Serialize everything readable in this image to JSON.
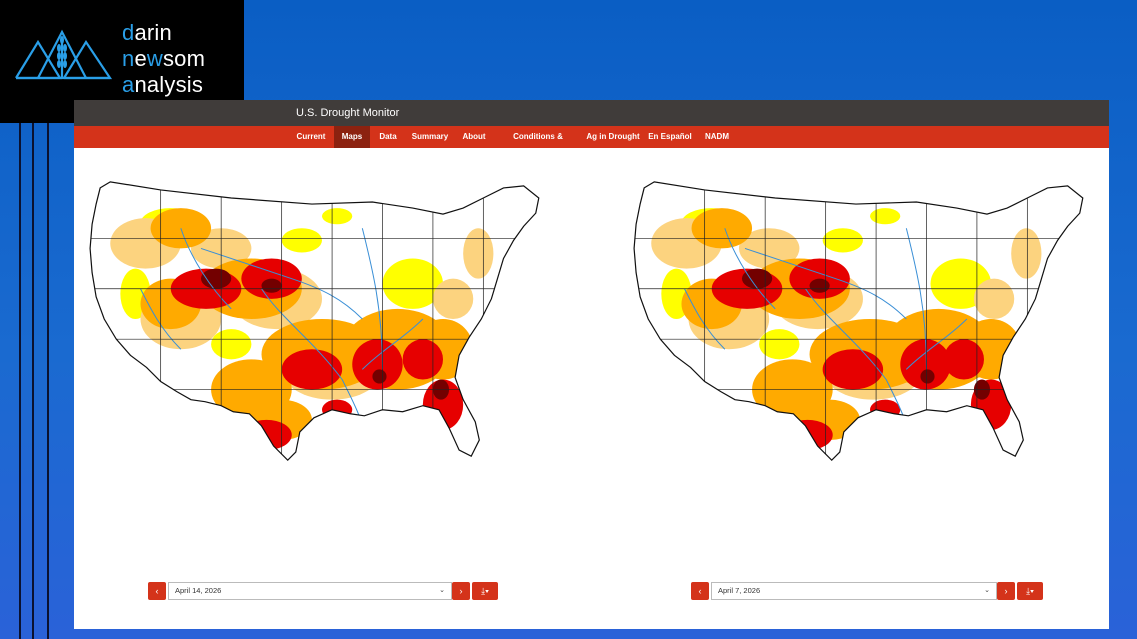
{
  "brand": {
    "lines": [
      {
        "first": "d",
        "rest": "arin",
        "mid": ""
      },
      {
        "first": "n",
        "rest": "som",
        "mid": "ew"
      },
      {
        "first": "a",
        "rest": "nalysis",
        "mid": ""
      }
    ],
    "logo_icon": "wheat-mountains-icon",
    "colors": {
      "accent": "#2a9fe8",
      "bg": "#000000"
    }
  },
  "usdm": {
    "title": "U.S. Drought Monitor",
    "nav": [
      "Current",
      "Maps",
      "Data",
      "Summary",
      "About",
      "Conditions & Outlooks",
      "Ag in Drought",
      "En Español",
      "NADM"
    ],
    "active_tab": "Maps",
    "colors": {
      "header": "#403c3a",
      "nav": "#d4331a",
      "nav_active": "#8c2210"
    }
  },
  "maps": [
    {
      "date": "April 14, 2026",
      "prev_icon": "chevron-left-icon",
      "next_icon": "chevron-right-icon",
      "download_icon": "download-icon"
    },
    {
      "date": "April 7, 2026",
      "prev_icon": "chevron-left-icon",
      "next_icon": "chevron-right-icon",
      "download_icon": "download-icon"
    }
  ],
  "drought_colors": {
    "D0": "#ffff00",
    "D1": "#fcd37f",
    "D2": "#ffaa00",
    "D3": "#e60000",
    "D4": "#730000",
    "rivers": "#3a8fd6"
  }
}
